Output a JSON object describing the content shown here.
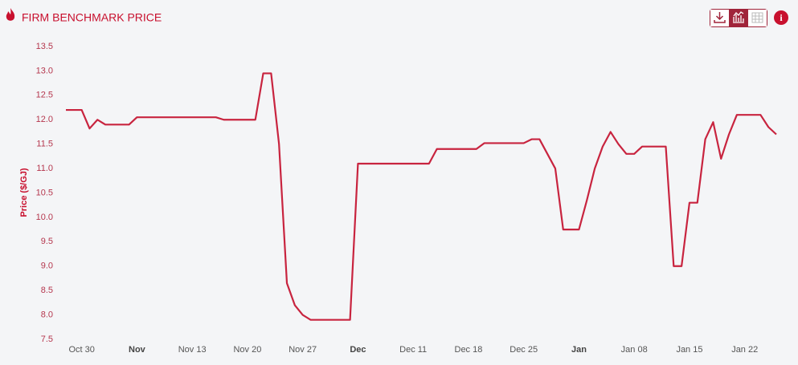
{
  "chart_data": {
    "type": "line",
    "title": "FIRM BENCHMARK PRICE",
    "y_label": "Price ($/GJ)",
    "color": "#c8243f",
    "grid": false,
    "ylim": [
      7.5,
      13.5
    ],
    "yticks": [
      7.5,
      {
        "value": 8,
        "label": "8.0"
      },
      8.5,
      {
        "value": 9,
        "label": "9.0"
      },
      9.5,
      {
        "value": 10,
        "label": "10.0"
      },
      10.5,
      {
        "value": 11,
        "label": "11.0"
      },
      11.5,
      {
        "value": 12,
        "label": "12.0"
      },
      12.5,
      {
        "value": 13,
        "label": "13.0"
      },
      13.5
    ],
    "xticks": [
      "Oct 30",
      {
        "value": "Nov 06",
        "label": "Nov"
      },
      "Nov 13",
      "Nov 20",
      "Nov 27",
      {
        "value": "Dec 04",
        "label": "Dec"
      },
      "Dec 11",
      "Dec 18",
      "Dec 25",
      {
        "value": "Jan 01",
        "label": "Jan"
      },
      "Jan 08",
      "Jan 15",
      "Jan 22"
    ],
    "x": [
      "Oct 28",
      "Oct 29",
      "Oct 30",
      "Oct 31",
      "Nov 01",
      "Nov 02",
      "Nov 03",
      "Nov 04",
      "Nov 05",
      "Nov 06",
      "Nov 07",
      "Nov 08",
      "Nov 09",
      "Nov 10",
      "Nov 11",
      "Nov 12",
      "Nov 13",
      "Nov 14",
      "Nov 15",
      "Nov 16",
      "Nov 17",
      "Nov 18",
      "Nov 19",
      "Nov 20",
      "Nov 21",
      "Nov 22",
      "Nov 23",
      "Nov 24",
      "Nov 25",
      "Nov 26",
      "Nov 27",
      "Nov 28",
      "Nov 29",
      "Nov 30",
      "Dec 01",
      "Dec 02",
      "Dec 03",
      "Dec 04",
      "Dec 05",
      "Dec 06",
      "Dec 07",
      "Dec 08",
      "Dec 09",
      "Dec 10",
      "Dec 11",
      "Dec 12",
      "Dec 13",
      "Dec 14",
      "Dec 15",
      "Dec 16",
      "Dec 17",
      "Dec 18",
      "Dec 19",
      "Dec 20",
      "Dec 21",
      "Dec 22",
      "Dec 23",
      "Dec 24",
      "Dec 25",
      "Dec 26",
      "Dec 27",
      "Dec 28",
      "Dec 29",
      "Dec 30",
      "Dec 31",
      "Jan 01",
      "Jan 02",
      "Jan 03",
      "Jan 04",
      "Jan 05",
      "Jan 06",
      "Jan 07",
      "Jan 08",
      "Jan 09",
      "Jan 10",
      "Jan 11",
      "Jan 12",
      "Jan 13",
      "Jan 14",
      "Jan 15",
      "Jan 16",
      "Jan 17",
      "Jan 18",
      "Jan 19",
      "Jan 20",
      "Jan 21",
      "Jan 22",
      "Jan 23",
      "Jan 24",
      "Jan 25",
      "Jan 26"
    ],
    "values": [
      12.2,
      12.2,
      12.2,
      11.82,
      12.0,
      11.9,
      11.9,
      11.9,
      11.9,
      12.05,
      12.05,
      12.05,
      12.05,
      12.05,
      12.05,
      12.05,
      12.05,
      12.05,
      12.05,
      12.05,
      12.0,
      12.0,
      12.0,
      12.0,
      12.0,
      12.95,
      12.95,
      11.5,
      8.65,
      8.2,
      8.0,
      7.9,
      7.9,
      7.9,
      7.9,
      7.9,
      7.9,
      11.1,
      11.1,
      11.1,
      11.1,
      11.1,
      11.1,
      11.1,
      11.1,
      11.1,
      11.1,
      11.4,
      11.4,
      11.4,
      11.4,
      11.4,
      11.4,
      11.52,
      11.52,
      11.52,
      11.52,
      11.52,
      11.52,
      11.6,
      11.6,
      11.3,
      11.0,
      9.75,
      9.75,
      9.75,
      10.35,
      11.0,
      11.45,
      11.75,
      11.5,
      11.3,
      11.3,
      11.45,
      11.45,
      11.45,
      11.45,
      9.0,
      9.0,
      10.3,
      10.3,
      11.6,
      11.95,
      11.2,
      11.7,
      12.1,
      12.1,
      12.1,
      12.1,
      11.85,
      11.7
    ]
  }
}
